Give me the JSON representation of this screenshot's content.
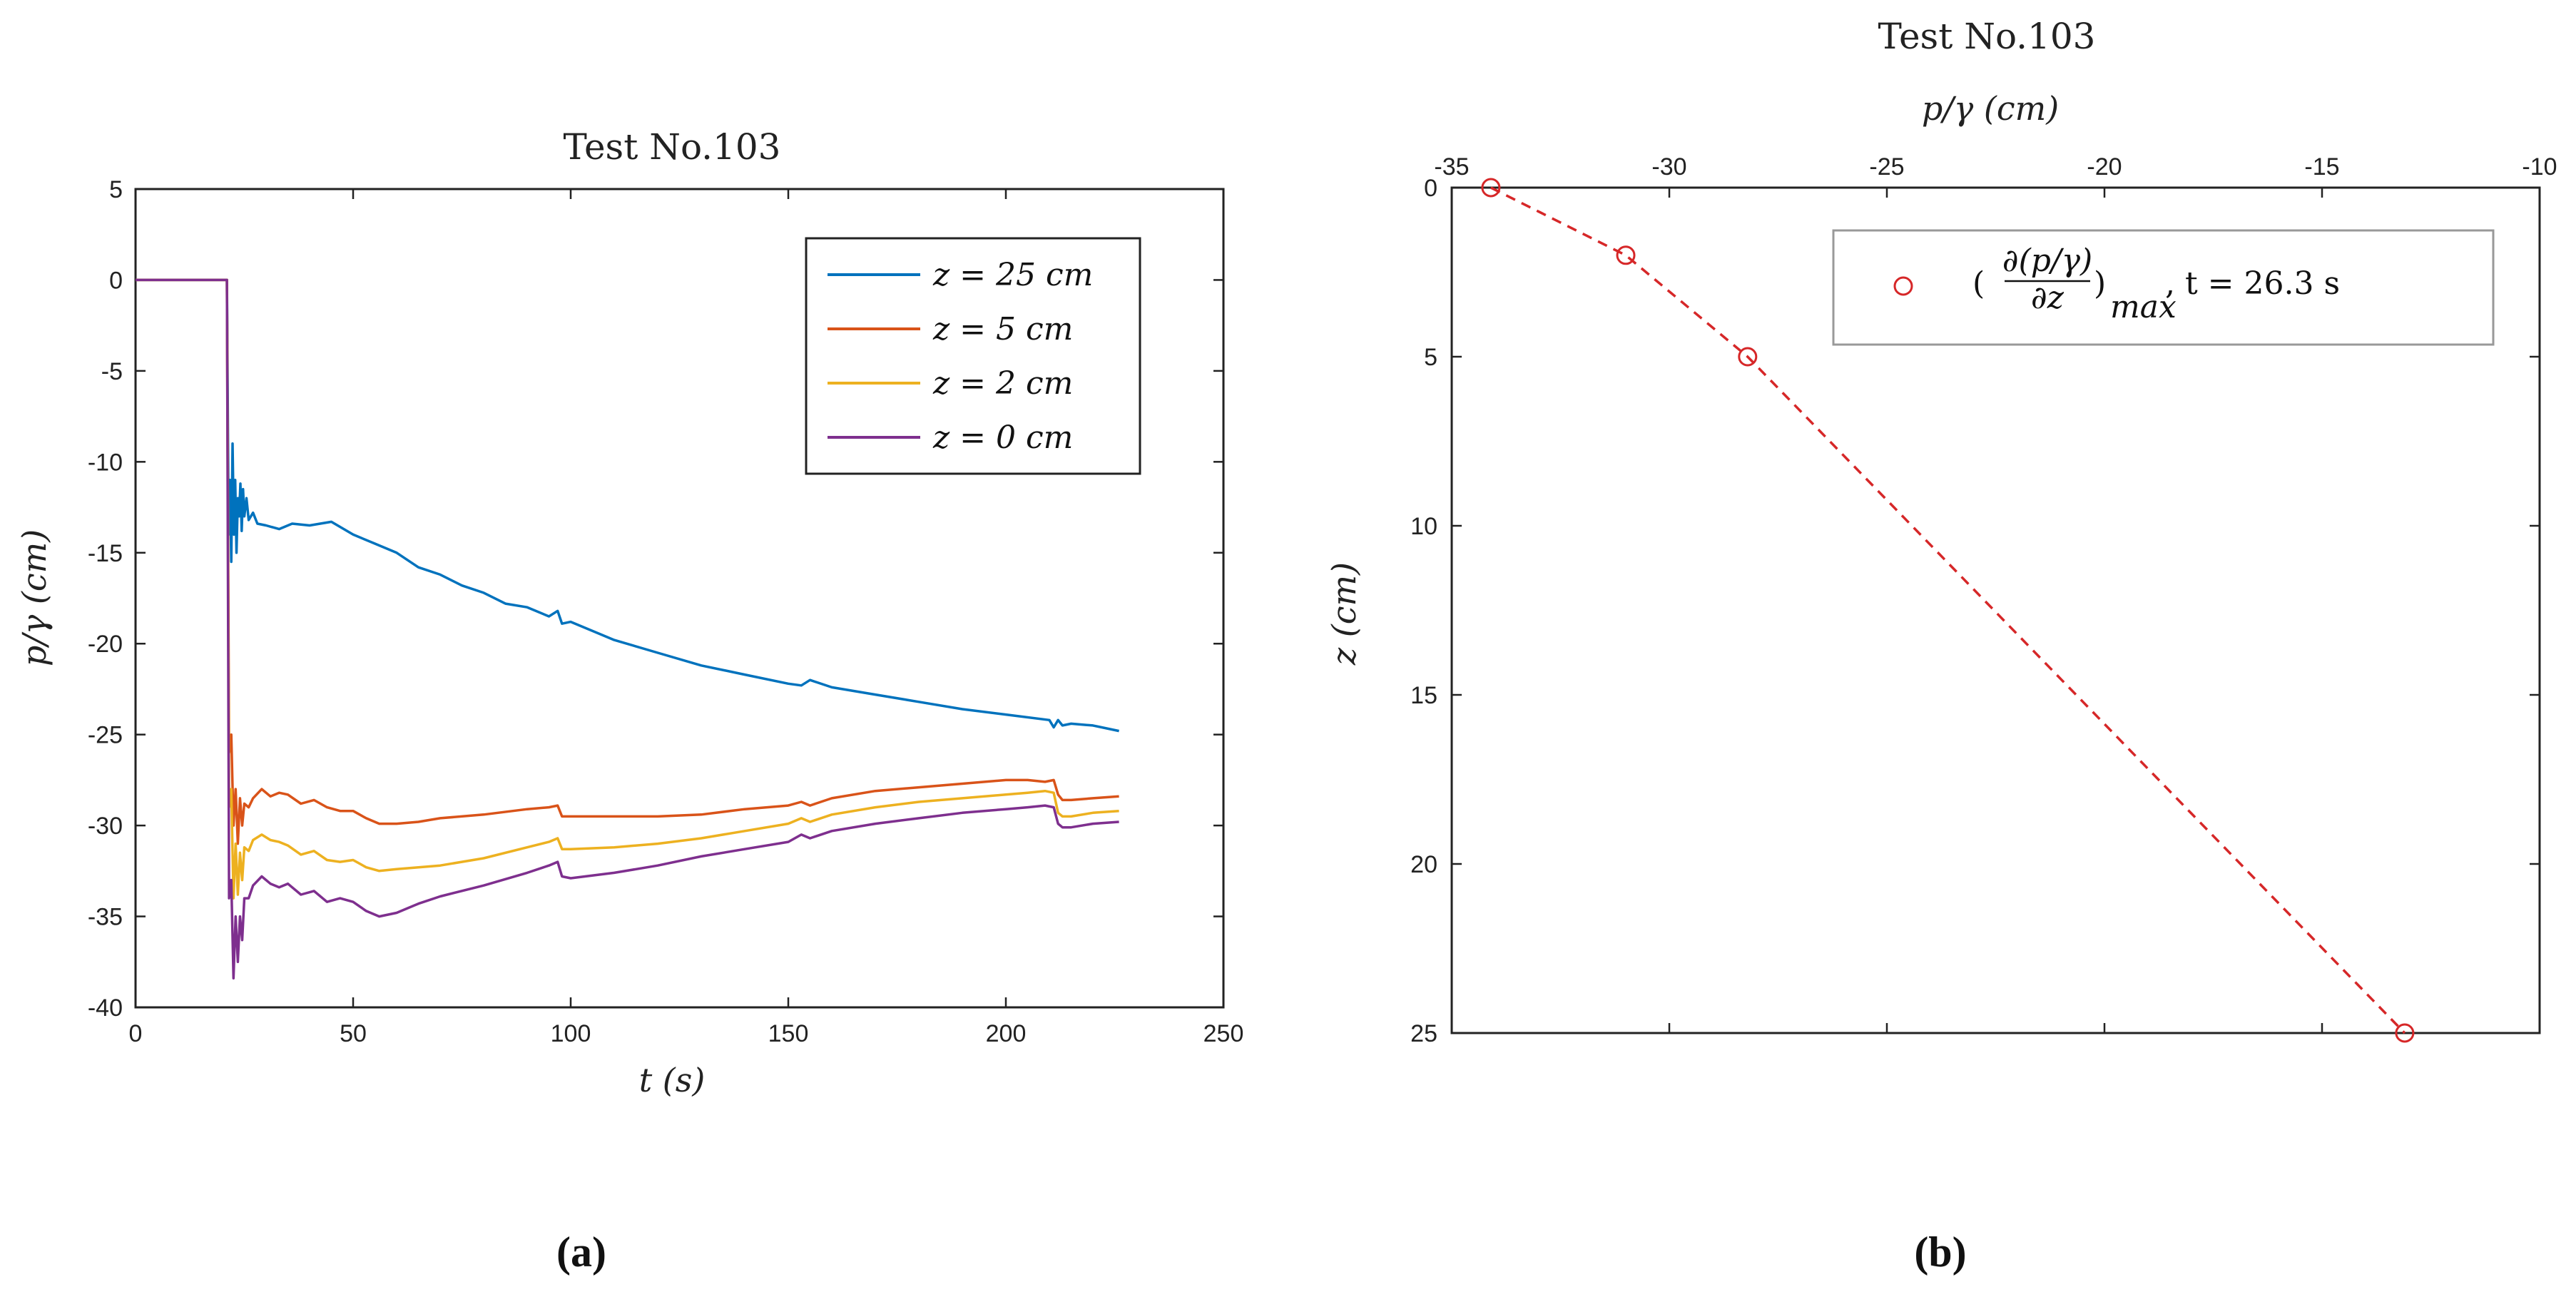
{
  "chart_data": [
    {
      "type": "line",
      "title": "Test No.103",
      "xlabel": "t (s)",
      "ylabel": "p/γ (cm)",
      "xlim": [
        0,
        250
      ],
      "ylim": [
        -40,
        5
      ],
      "xticks": [
        0,
        50,
        100,
        150,
        200,
        250
      ],
      "yticks": [
        5,
        0,
        -5,
        -10,
        -15,
        -20,
        -25,
        -30,
        -35,
        -40
      ],
      "legend_position": "top-right",
      "series": [
        {
          "name": "z = 25 cm",
          "color": "#0072bd",
          "x": [
            0,
            5,
            10,
            15,
            20,
            21,
            21.4,
            21.7,
            22,
            22.3,
            22.6,
            22.9,
            23.2,
            23.5,
            23.8,
            24.1,
            24.4,
            24.7,
            25.0,
            25.5,
            26,
            27,
            28,
            30,
            33,
            36,
            40,
            45,
            50,
            55,
            60,
            65,
            70,
            75,
            80,
            85,
            90,
            95,
            97,
            98,
            100,
            110,
            120,
            130,
            140,
            150,
            153,
            155,
            160,
            170,
            180,
            190,
            200,
            210,
            211,
            212,
            213,
            215,
            220,
            226
          ],
          "y": [
            0,
            0,
            0,
            0,
            0,
            0,
            -14,
            -11,
            -15.5,
            -9,
            -14,
            -11,
            -15,
            -12,
            -13,
            -11.2,
            -13.8,
            -11.5,
            -13,
            -12,
            -13.2,
            -12.8,
            -13.4,
            -13.5,
            -13.7,
            -13.4,
            -13.5,
            -13.3,
            -14,
            -14.5,
            -15,
            -15.8,
            -16.2,
            -16.8,
            -17.2,
            -17.8,
            -18,
            -18.5,
            -18.2,
            -18.9,
            -18.8,
            -19.8,
            -20.5,
            -21.2,
            -21.7,
            -22.2,
            -22.3,
            -22,
            -22.4,
            -22.8,
            -23.2,
            -23.6,
            -23.9,
            -24.2,
            -24.6,
            -24.2,
            -24.5,
            -24.4,
            -24.5,
            -24.8
          ]
        },
        {
          "name": "z = 5 cm",
          "color": "#d95319",
          "x": [
            0,
            5,
            10,
            15,
            20,
            21,
            21.5,
            22,
            22.5,
            23,
            23.5,
            24,
            24.5,
            25,
            26,
            27,
            29,
            31,
            33,
            35,
            38,
            41,
            44,
            47,
            50,
            53,
            56,
            60,
            65,
            70,
            80,
            90,
            95,
            97,
            98,
            100,
            110,
            120,
            130,
            140,
            150,
            153,
            155,
            160,
            170,
            180,
            190,
            200,
            205,
            209,
            211,
            212,
            213,
            215,
            220,
            226
          ],
          "y": [
            0,
            0,
            0,
            0,
            0,
            0,
            -26,
            -25,
            -30,
            -28,
            -31,
            -28.5,
            -30,
            -28.8,
            -29,
            -28.5,
            -28,
            -28.4,
            -28.2,
            -28.3,
            -28.8,
            -28.6,
            -29,
            -29.2,
            -29.2,
            -29.6,
            -29.9,
            -29.9,
            -29.8,
            -29.6,
            -29.4,
            -29.1,
            -29,
            -28.9,
            -29.5,
            -29.5,
            -29.5,
            -29.5,
            -29.4,
            -29.1,
            -28.9,
            -28.7,
            -28.9,
            -28.5,
            -28.1,
            -27.9,
            -27.7,
            -27.5,
            -27.5,
            -27.6,
            -27.5,
            -28.3,
            -28.6,
            -28.6,
            -28.5,
            -28.4
          ]
        },
        {
          "name": "z = 2 cm",
          "color": "#edb120",
          "x": [
            0,
            5,
            10,
            15,
            20,
            21,
            21.5,
            22,
            22.5,
            23,
            23.5,
            24,
            24.5,
            25,
            26,
            27,
            29,
            31,
            33,
            35,
            38,
            41,
            44,
            47,
            50,
            53,
            56,
            60,
            65,
            70,
            80,
            90,
            95,
            97,
            98,
            100,
            110,
            120,
            130,
            140,
            150,
            153,
            155,
            160,
            170,
            180,
            190,
            200,
            205,
            209,
            211,
            212,
            213,
            215,
            220,
            226
          ],
          "y": [
            0,
            0,
            0,
            0,
            0,
            0,
            -29,
            -28,
            -34,
            -31,
            -33.8,
            -31.5,
            -33,
            -31.2,
            -31.4,
            -30.8,
            -30.5,
            -30.8,
            -30.9,
            -31.1,
            -31.6,
            -31.4,
            -31.9,
            -32,
            -31.9,
            -32.3,
            -32.5,
            -32.4,
            -32.3,
            -32.2,
            -31.8,
            -31.2,
            -30.9,
            -30.7,
            -31.3,
            -31.3,
            -31.2,
            -31,
            -30.7,
            -30.3,
            -29.9,
            -29.6,
            -29.8,
            -29.4,
            -29,
            -28.7,
            -28.5,
            -28.3,
            -28.2,
            -28.1,
            -28.2,
            -29.3,
            -29.5,
            -29.5,
            -29.3,
            -29.2
          ]
        },
        {
          "name": "z = 0 cm",
          "color": "#7e2f8e",
          "x": [
            0,
            5,
            10,
            15,
            20,
            21,
            21.5,
            22,
            22.5,
            23,
            23.5,
            24,
            24.5,
            25,
            26,
            27,
            29,
            31,
            33,
            35,
            38,
            41,
            44,
            47,
            50,
            53,
            56,
            60,
            65,
            70,
            80,
            90,
            95,
            97,
            98,
            100,
            110,
            120,
            130,
            140,
            150,
            153,
            155,
            160,
            170,
            180,
            190,
            200,
            205,
            209,
            211,
            212,
            213,
            215,
            220,
            226
          ],
          "y": [
            0,
            0,
            0,
            0,
            0,
            0,
            -34,
            -33,
            -38.4,
            -35,
            -37.5,
            -35,
            -36.3,
            -34,
            -34,
            -33.3,
            -32.8,
            -33.2,
            -33.4,
            -33.2,
            -33.8,
            -33.6,
            -34.2,
            -34,
            -34.2,
            -34.7,
            -35,
            -34.8,
            -34.3,
            -33.9,
            -33.3,
            -32.6,
            -32.2,
            -32,
            -32.8,
            -32.9,
            -32.6,
            -32.2,
            -31.7,
            -31.3,
            -30.9,
            -30.5,
            -30.7,
            -30.3,
            -29.9,
            -29.6,
            -29.3,
            -29.1,
            -29,
            -28.9,
            -29,
            -29.9,
            -30.1,
            -30.1,
            -29.9,
            -29.8
          ]
        }
      ],
      "panel_label": "(a)"
    },
    {
      "type": "line",
      "title": "Test No.103",
      "xlabel": "p/γ (cm)",
      "ylabel": "z (cm)",
      "xlim": [
        -35,
        -10
      ],
      "ylim": [
        25,
        0
      ],
      "xticks": [
        -35,
        -30,
        -25,
        -20,
        -15,
        -10
      ],
      "yticks": [
        0,
        5,
        10,
        15,
        20,
        25
      ],
      "legend_position": "top-right",
      "series": [
        {
          "name": "(∂(p/γ)/∂z)max, t = 26.3 s",
          "legend_numerator": "∂(p/γ)",
          "legend_denominator": "∂z",
          "legend_subscript": "max",
          "legend_suffix": ", t = 26.3 s",
          "color": "#d62728",
          "style": "dashed-with-circle-markers",
          "x": [
            -34.1,
            -31,
            -28.2,
            -13.1
          ],
          "y": [
            0,
            2,
            5,
            25
          ]
        }
      ],
      "panel_label": "(b)"
    }
  ]
}
